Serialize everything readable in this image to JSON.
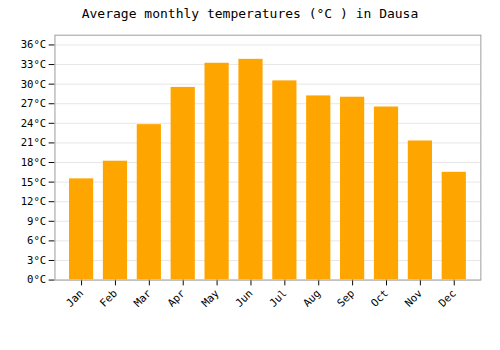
{
  "chart_data": {
    "type": "bar",
    "title": "Average monthly temperatures (°C ) in Dausa",
    "categories": [
      "Jan",
      "Feb",
      "Mar",
      "Apr",
      "May",
      "Jun",
      "Jul",
      "Aug",
      "Sep",
      "Oct",
      "Nov",
      "Dec"
    ],
    "values": [
      15.5,
      18.2,
      23.8,
      29.5,
      33.2,
      33.8,
      30.5,
      28.2,
      28.0,
      26.5,
      21.3,
      16.5
    ],
    "color": "#FFA500",
    "ylim": [
      0,
      37.5
    ],
    "yticks": [
      {
        "value": 0,
        "label": "0°C"
      },
      {
        "value": 3,
        "label": "3°C"
      },
      {
        "value": 6,
        "label": "6°C"
      },
      {
        "value": 9,
        "label": "9°C"
      },
      {
        "value": 12,
        "label": "12°C"
      },
      {
        "value": 15,
        "label": "15°C"
      },
      {
        "value": 18,
        "label": "18°C"
      },
      {
        "value": 21,
        "label": "21°C"
      },
      {
        "value": 24,
        "label": "24°C"
      },
      {
        "value": 27,
        "label": "27°C"
      },
      {
        "value": 30,
        "label": "30°C"
      },
      {
        "value": 33,
        "label": "33°C"
      },
      {
        "value": 36,
        "label": "36°C"
      }
    ],
    "grid": true
  }
}
